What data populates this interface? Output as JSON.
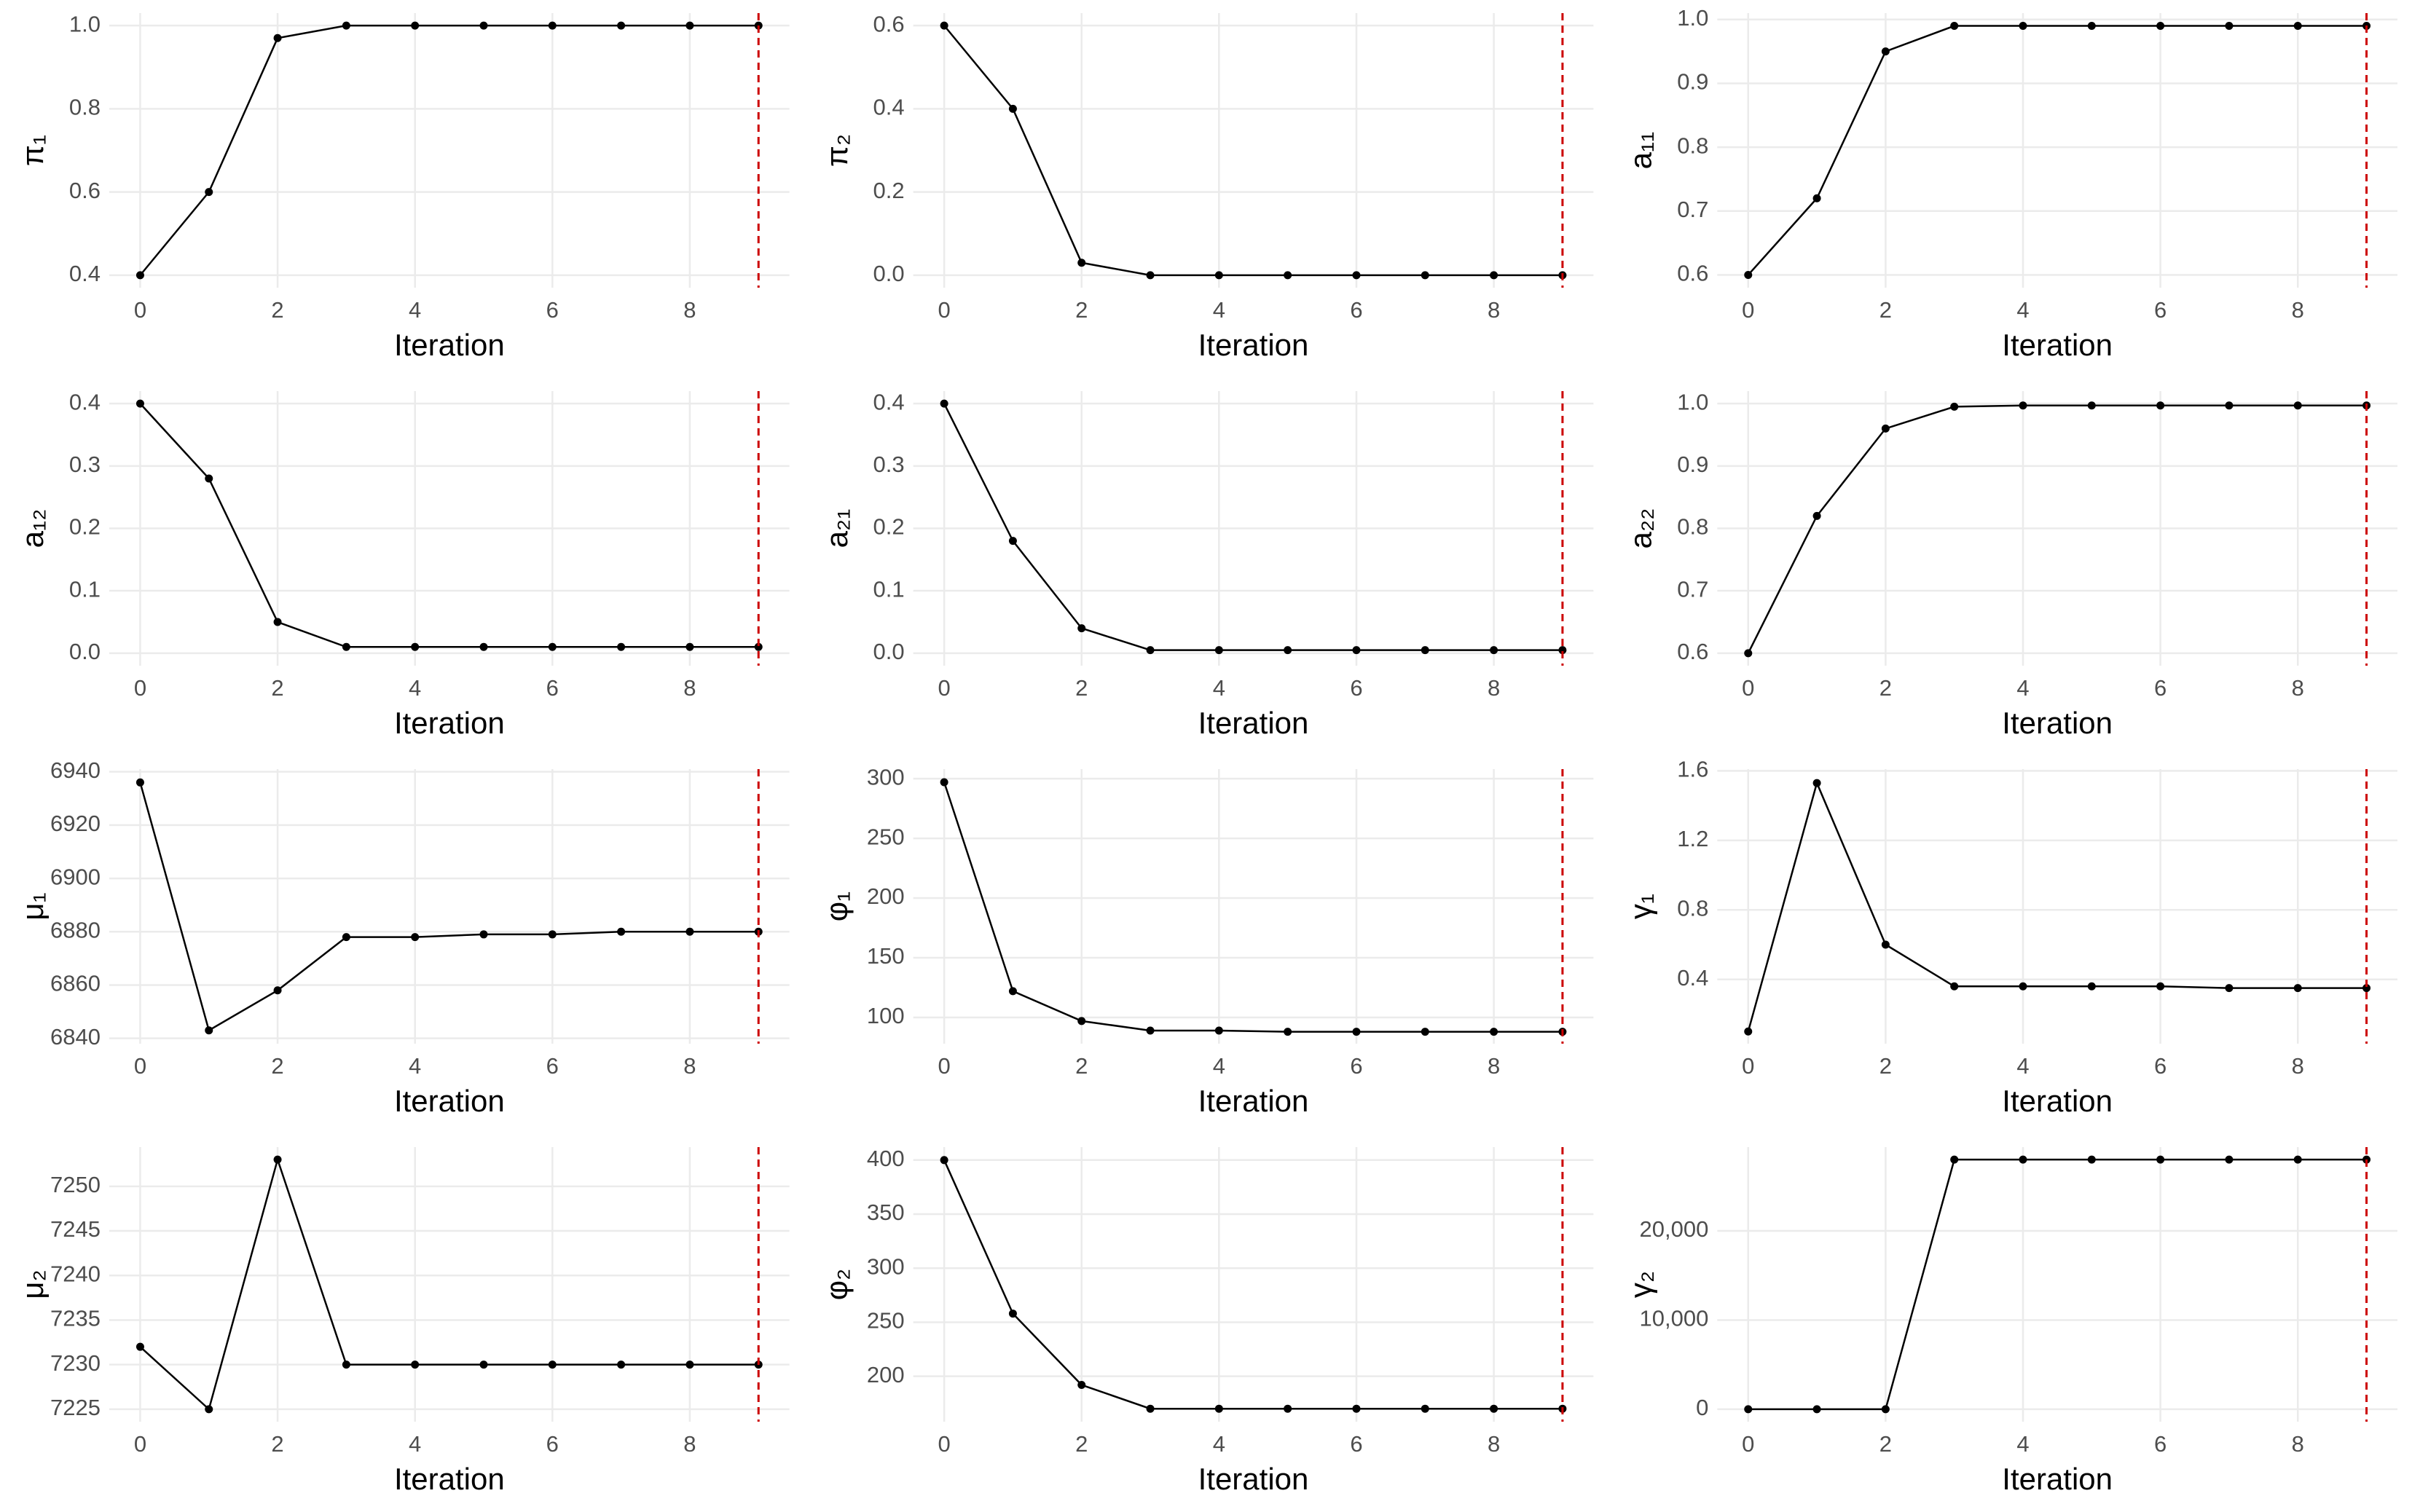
{
  "chart_data": [
    {
      "type": "line",
      "ylabel": "π₁",
      "xlabel": "Iteration",
      "x": [
        0,
        1,
        2,
        3,
        4,
        5,
        6,
        7,
        8,
        9
      ],
      "series": [
        {
          "color": "#000000",
          "values": [
            0.4,
            0.6,
            0.97,
            1.0,
            1.0,
            1.0,
            1.0,
            1.0,
            1.0,
            1.0
          ]
        }
      ],
      "xlim": [
        -0.45,
        9.45
      ],
      "xticks": [
        0,
        2,
        4,
        6,
        8
      ],
      "ylim": [
        0.37,
        1.03
      ],
      "yticks": [
        0.4,
        0.6,
        0.8,
        {
          "value": 1.0,
          "label": "1.0"
        }
      ],
      "grid": true,
      "vline": 9,
      "vline_color": "#cc0000"
    },
    {
      "type": "line",
      "ylabel": "π₂",
      "xlabel": "Iteration",
      "x": [
        0,
        1,
        2,
        3,
        4,
        5,
        6,
        7,
        8,
        9
      ],
      "series": [
        {
          "color": "#000000",
          "values": [
            0.6,
            0.4,
            0.03,
            0.0,
            0.0,
            0.0,
            0.0,
            0.0,
            0.0,
            0.0
          ]
        }
      ],
      "xlim": [
        -0.45,
        9.45
      ],
      "xticks": [
        0,
        2,
        4,
        6,
        8
      ],
      "ylim": [
        -0.03,
        0.63
      ],
      "yticks": [
        {
          "value": 0,
          "label": "0.0"
        },
        0.2,
        0.4,
        0.6
      ],
      "grid": true,
      "vline": 9,
      "vline_color": "#cc0000"
    },
    {
      "type": "line",
      "ylabel": "a₁₁",
      "xlabel": "Iteration",
      "x": [
        0,
        1,
        2,
        3,
        4,
        5,
        6,
        7,
        8,
        9
      ],
      "series": [
        {
          "color": "#000000",
          "values": [
            0.6,
            0.72,
            0.95,
            0.99,
            0.99,
            0.99,
            0.99,
            0.99,
            0.99,
            0.99
          ]
        }
      ],
      "xlim": [
        -0.45,
        9.45
      ],
      "xticks": [
        0,
        2,
        4,
        6,
        8
      ],
      "ylim": [
        0.58,
        1.01
      ],
      "yticks": [
        0.6,
        0.7,
        0.8,
        0.9,
        {
          "value": 1.0,
          "label": "1.0"
        }
      ],
      "grid": true,
      "vline": 9,
      "vline_color": "#cc0000"
    },
    {
      "type": "line",
      "ylabel": "a₁₂",
      "xlabel": "Iteration",
      "x": [
        0,
        1,
        2,
        3,
        4,
        5,
        6,
        7,
        8,
        9
      ],
      "series": [
        {
          "color": "#000000",
          "values": [
            0.4,
            0.28,
            0.05,
            0.01,
            0.01,
            0.01,
            0.01,
            0.01,
            0.01,
            0.01
          ]
        }
      ],
      "xlim": [
        -0.45,
        9.45
      ],
      "xticks": [
        0,
        2,
        4,
        6,
        8
      ],
      "ylim": [
        -0.02,
        0.42
      ],
      "yticks": [
        {
          "value": 0,
          "label": "0.0"
        },
        0.1,
        0.2,
        0.3,
        0.4
      ],
      "grid": true,
      "vline": 9,
      "vline_color": "#cc0000"
    },
    {
      "type": "line",
      "ylabel": "a₂₁",
      "xlabel": "Iteration",
      "x": [
        0,
        1,
        2,
        3,
        4,
        5,
        6,
        7,
        8,
        9
      ],
      "series": [
        {
          "color": "#000000",
          "values": [
            0.4,
            0.18,
            0.04,
            0.005,
            0.005,
            0.005,
            0.005,
            0.005,
            0.005,
            0.005
          ]
        }
      ],
      "xlim": [
        -0.45,
        9.45
      ],
      "xticks": [
        0,
        2,
        4,
        6,
        8
      ],
      "ylim": [
        -0.02,
        0.42
      ],
      "yticks": [
        {
          "value": 0,
          "label": "0.0"
        },
        0.1,
        0.2,
        0.3,
        0.4
      ],
      "grid": true,
      "vline": 9,
      "vline_color": "#cc0000"
    },
    {
      "type": "line",
      "ylabel": "a₂₂",
      "xlabel": "Iteration",
      "x": [
        0,
        1,
        2,
        3,
        4,
        5,
        6,
        7,
        8,
        9
      ],
      "series": [
        {
          "color": "#000000",
          "values": [
            0.6,
            0.82,
            0.96,
            0.995,
            0.997,
            0.997,
            0.997,
            0.997,
            0.997,
            0.997
          ]
        }
      ],
      "xlim": [
        -0.45,
        9.45
      ],
      "xticks": [
        0,
        2,
        4,
        6,
        8
      ],
      "ylim": [
        0.58,
        1.02
      ],
      "yticks": [
        0.6,
        0.7,
        0.8,
        0.9,
        {
          "value": 1.0,
          "label": "1.0"
        }
      ],
      "grid": true,
      "vline": 9,
      "vline_color": "#cc0000"
    },
    {
      "type": "line",
      "ylabel": "μ₁",
      "xlabel": "Iteration",
      "x": [
        0,
        1,
        2,
        3,
        4,
        5,
        6,
        7,
        8,
        9
      ],
      "series": [
        {
          "color": "#000000",
          "values": [
            6936,
            6843,
            6858,
            6878,
            6878,
            6879,
            6879,
            6880,
            6880,
            6880
          ]
        }
      ],
      "xlim": [
        -0.45,
        9.45
      ],
      "xticks": [
        0,
        2,
        4,
        6,
        8
      ],
      "ylim": [
        6838,
        6941
      ],
      "yticks": [
        6840,
        6860,
        6880,
        6900,
        6920,
        6940
      ],
      "grid": true,
      "vline": 9,
      "vline_color": "#cc0000"
    },
    {
      "type": "line",
      "ylabel": "φ₁",
      "xlabel": "Iteration",
      "x": [
        0,
        1,
        2,
        3,
        4,
        5,
        6,
        7,
        8,
        9
      ],
      "series": [
        {
          "color": "#000000",
          "values": [
            297,
            122,
            97,
            89,
            89,
            88,
            88,
            88,
            88,
            88
          ]
        }
      ],
      "xlim": [
        -0.45,
        9.45
      ],
      "xticks": [
        0,
        2,
        4,
        6,
        8
      ],
      "ylim": [
        78,
        308
      ],
      "yticks": [
        100,
        150,
        200,
        250,
        300
      ],
      "grid": true,
      "vline": 9,
      "vline_color": "#cc0000"
    },
    {
      "type": "line",
      "ylabel": "γ₁",
      "xlabel": "Iteration",
      "x": [
        0,
        1,
        2,
        3,
        4,
        5,
        6,
        7,
        8,
        9
      ],
      "series": [
        {
          "color": "#000000",
          "values": [
            0.1,
            1.53,
            0.6,
            0.36,
            0.36,
            0.36,
            0.36,
            0.35,
            0.35,
            0.35
          ]
        }
      ],
      "xlim": [
        -0.45,
        9.45
      ],
      "xticks": [
        0,
        2,
        4,
        6,
        8
      ],
      "ylim": [
        0.03,
        1.61
      ],
      "yticks": [
        0.4,
        0.8,
        1.2,
        1.6
      ],
      "grid": true,
      "vline": 9,
      "vline_color": "#cc0000"
    },
    {
      "type": "line",
      "ylabel": "μ₂",
      "xlabel": "Iteration",
      "x": [
        0,
        1,
        2,
        3,
        4,
        5,
        6,
        7,
        8,
        9
      ],
      "series": [
        {
          "color": "#000000",
          "values": [
            7232,
            7225,
            7253,
            7230,
            7230,
            7230,
            7230,
            7230,
            7230,
            7230
          ]
        }
      ],
      "xlim": [
        -0.45,
        9.45
      ],
      "xticks": [
        0,
        2,
        4,
        6,
        8
      ],
      "ylim": [
        7223.6,
        7254.4
      ],
      "yticks": [
        7225,
        7230,
        7235,
        7240,
        7245,
        7250
      ],
      "grid": true,
      "vline": 9,
      "vline_color": "#cc0000"
    },
    {
      "type": "line",
      "ylabel": "φ₂",
      "xlabel": "Iteration",
      "x": [
        0,
        1,
        2,
        3,
        4,
        5,
        6,
        7,
        8,
        9
      ],
      "series": [
        {
          "color": "#000000",
          "values": [
            400,
            258,
            192,
            170,
            170,
            170,
            170,
            170,
            170,
            170
          ]
        }
      ],
      "xlim": [
        -0.45,
        9.45
      ],
      "xticks": [
        0,
        2,
        4,
        6,
        8
      ],
      "ylim": [
        158,
        412
      ],
      "yticks": [
        200,
        250,
        300,
        350,
        400
      ],
      "grid": true,
      "vline": 9,
      "vline_color": "#cc0000"
    },
    {
      "type": "line",
      "ylabel": "γ₂",
      "xlabel": "Iteration",
      "x": [
        0,
        1,
        2,
        3,
        4,
        5,
        6,
        7,
        8,
        9
      ],
      "series": [
        {
          "color": "#000000",
          "values": [
            0,
            0,
            0,
            28000,
            28000,
            28000,
            28000,
            28000,
            28000,
            28000
          ]
        }
      ],
      "xlim": [
        -0.45,
        9.45
      ],
      "xticks": [
        0,
        2,
        4,
        6,
        8
      ],
      "ylim": [
        -1400,
        29400
      ],
      "yticks": [
        0,
        {
          "value": 10000,
          "label": "10,000"
        },
        {
          "value": 20000,
          "label": "20,000"
        }
      ],
      "grid": true,
      "vline": 9,
      "vline_color": "#cc0000"
    }
  ]
}
